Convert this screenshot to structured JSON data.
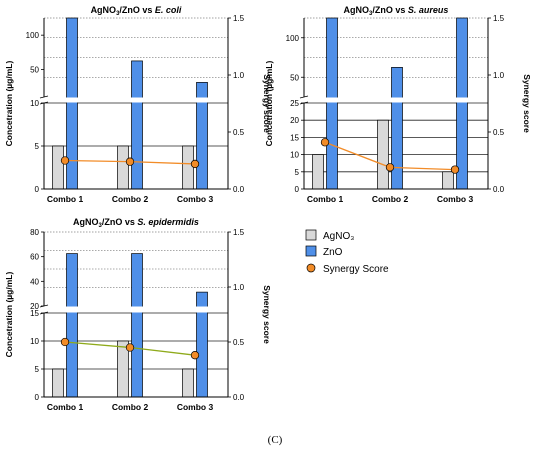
{
  "figure_label": "(C)",
  "colors": {
    "agno3": "#d9d9d9",
    "zno": "#4f8fe8",
    "synergy_point": "#f28c28",
    "synergy_line_plots": [
      "#f28c28",
      "#f28c28",
      "#8faa1b"
    ]
  },
  "legend": {
    "items": [
      {
        "label": "AgNO₃",
        "kind": "bar",
        "series": "agno3"
      },
      {
        "label": "ZnO",
        "kind": "bar",
        "series": "zno"
      },
      {
        "label": "Synergy Score",
        "kind": "point",
        "series": "synergy"
      }
    ]
  },
  "chart_data": [
    {
      "type": "bar",
      "title": {
        "pre": "AgNO",
        "sub": "3",
        "mid": "/ZnO vs ",
        "ital": "E. coli"
      },
      "ylabel": "Concetration (µg/mL)",
      "ylabel_right": "Synergy score",
      "categories": [
        "Combo 1",
        "Combo 2",
        "Combo 3"
      ],
      "y_scale": "broken",
      "y_segments": [
        {
          "range": [
            0,
            10
          ],
          "ticks": [
            0,
            5,
            10
          ]
        },
        {
          "range": [
            10,
            125
          ],
          "ticks": [
            50,
            100
          ]
        }
      ],
      "y2lim": [
        0.0,
        1.5
      ],
      "y2_ticks": [
        "0.0",
        "0.5",
        "1.0",
        "1.5"
      ],
      "series": [
        {
          "name": "AgNO₃",
          "values": [
            5,
            5,
            5
          ]
        },
        {
          "name": "ZnO",
          "values": [
            125,
            62.5,
            31.25
          ]
        }
      ],
      "synergy": {
        "name": "Synergy Score",
        "values": [
          0.25,
          0.24,
          0.22
        ]
      }
    },
    {
      "type": "bar",
      "title": {
        "pre": "AgNO",
        "sub": "3",
        "mid": "/ZnO vs ",
        "ital": "S. aureus"
      },
      "ylabel": "Concetration (µg/mL)",
      "ylabel_right": "Synergy score",
      "categories": [
        "Combo 1",
        "Combo 2",
        "Combo 3"
      ],
      "y_scale": "broken",
      "y_segments": [
        {
          "range": [
            0,
            25
          ],
          "ticks": [
            0,
            5,
            10,
            15,
            20,
            25
          ]
        },
        {
          "range": [
            25,
            125
          ],
          "ticks": [
            50,
            100
          ]
        }
      ],
      "y2lim": [
        0.0,
        1.5
      ],
      "y2_ticks": [
        "0.0",
        "0.5",
        "1.0",
        "1.5"
      ],
      "series": [
        {
          "name": "AgNO₃",
          "values": [
            10,
            20,
            5
          ]
        },
        {
          "name": "ZnO",
          "values": [
            125,
            62.5,
            125
          ]
        }
      ],
      "synergy": {
        "name": "Synergy Score",
        "values": [
          0.41,
          0.19,
          0.17
        ]
      }
    },
    {
      "type": "bar",
      "title": {
        "pre": "AgNO",
        "sub": "3",
        "mid": "/ZnO vs ",
        "ital": "S. epidermidis"
      },
      "ylabel": "Concetration (µg/mL)",
      "ylabel_right": "Synergy score",
      "categories": [
        "Combo 1",
        "Combo 2",
        "Combo 3"
      ],
      "y_scale": "broken",
      "y_segments": [
        {
          "range": [
            0,
            15
          ],
          "ticks": [
            0,
            5,
            10,
            15
          ]
        },
        {
          "range": [
            20,
            80
          ],
          "ticks": [
            20,
            40,
            60,
            80
          ]
        }
      ],
      "y2lim": [
        0.0,
        1.5
      ],
      "y2_ticks": [
        "0.0",
        "0.5",
        "1.0",
        "1.5"
      ],
      "series": [
        {
          "name": "AgNO₃",
          "values": [
            5,
            10,
            5
          ]
        },
        {
          "name": "ZnO",
          "values": [
            62.5,
            62.5,
            31.25
          ]
        }
      ],
      "synergy": {
        "name": "Synergy Score",
        "values": [
          0.5,
          0.45,
          0.38
        ]
      }
    }
  ]
}
